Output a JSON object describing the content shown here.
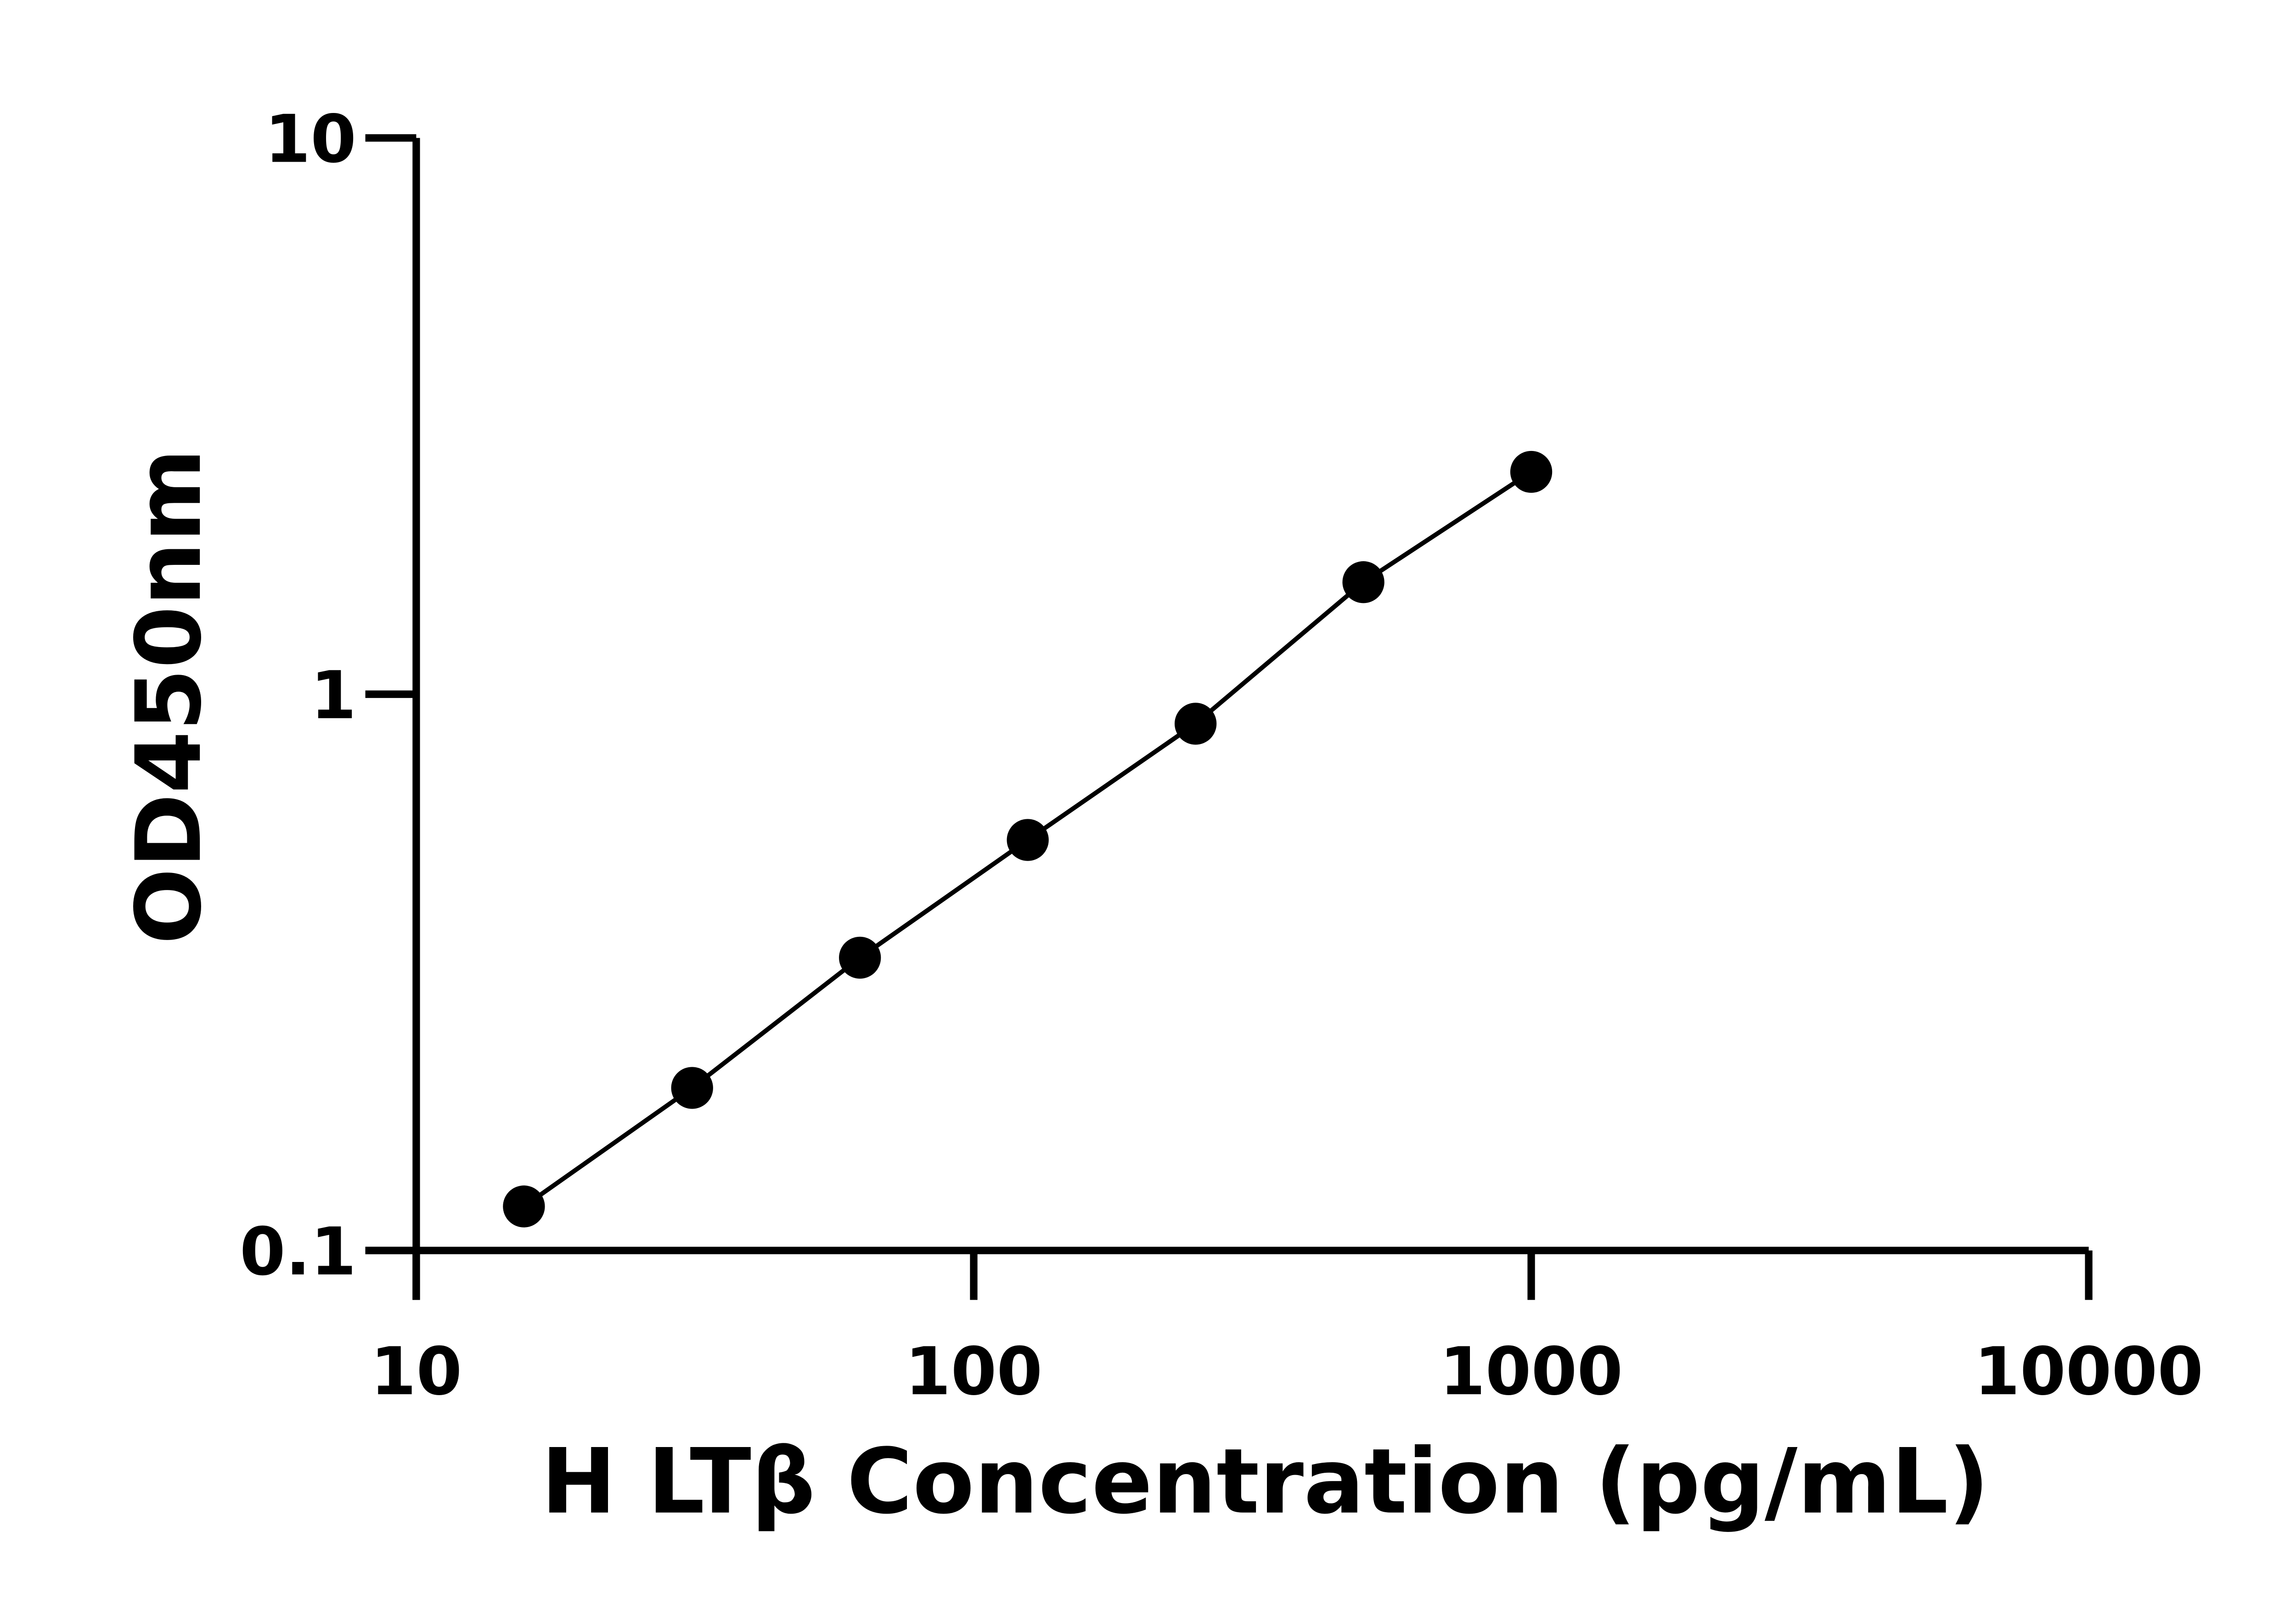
{
  "chart_data": {
    "type": "scatter",
    "xlabel": "H LTβ Concentration (pg/mL)",
    "ylabel": "OD450nm",
    "x": [
      15.6,
      31.25,
      62.5,
      125,
      250,
      500,
      1000
    ],
    "series": [
      {
        "color": "#000000",
        "values": [
          0.12,
          0.196,
          0.336,
          0.547,
          0.885,
          1.59,
          2.51
        ]
      }
    ],
    "xscale": "log",
    "yscale": "log",
    "xlim": [
      10,
      10000
    ],
    "ylim": [
      0.1,
      10
    ],
    "xticks": [
      10,
      100,
      1000,
      10000
    ],
    "yticks": [
      0.1,
      1,
      10
    ],
    "connect": true
  }
}
